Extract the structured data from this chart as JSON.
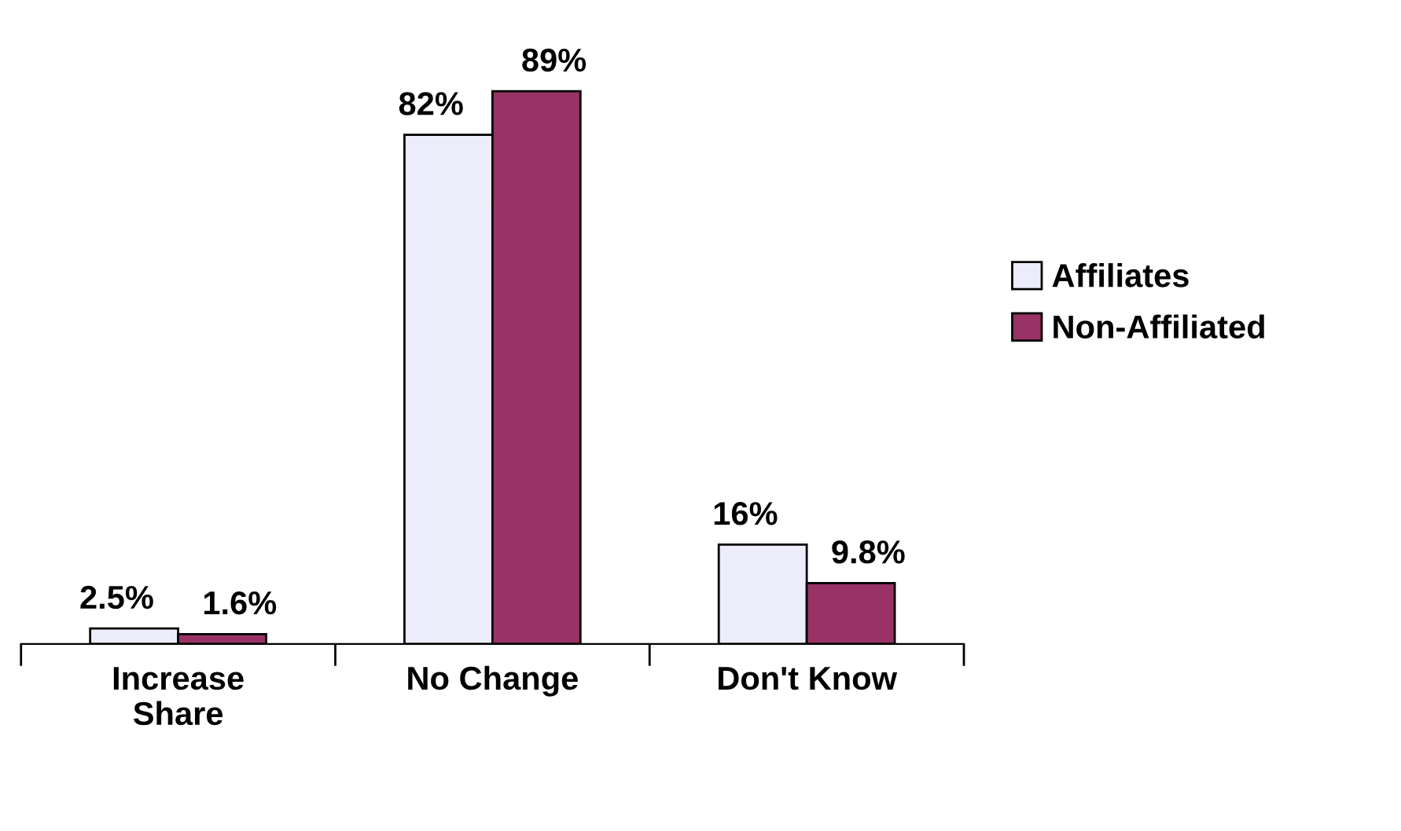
{
  "chart_data": {
    "type": "bar",
    "categories": [
      "Increase\nShare",
      "No Change",
      "Don't Know"
    ],
    "series": [
      {
        "name": "Affiliates",
        "color": "#ececfa",
        "values": [
          2.5,
          82,
          16
        ],
        "value_labels": [
          "2.5%",
          "82%",
          "16%"
        ]
      },
      {
        "name": "Non-Affiliated",
        "color": "#993366",
        "values": [
          1.6,
          89,
          9.8
        ],
        "value_labels": [
          "1.6%",
          "89%",
          "9.8%"
        ]
      }
    ],
    "legend": "right",
    "grid": false
  }
}
